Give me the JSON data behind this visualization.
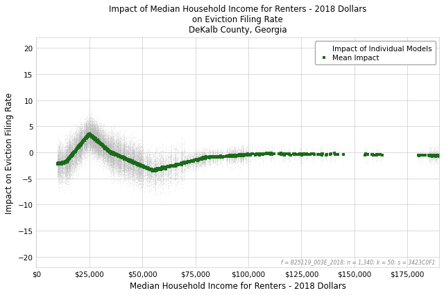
{
  "title_line1": "Impact of Median Household Income for Renters - 2018 Dollars",
  "title_line2": "on Eviction Filing Rate",
  "title_line3": "DeKalb County, Georgia",
  "xlabel": "Median Household Income for Renters - 2018 Dollars",
  "ylabel": "Impact on Eviction Filing Rate",
  "footnote": "f = B25119_003E_2018; n = 1,340; k = 50; s = 3423C0F1",
  "xlim": [
    0,
    190000
  ],
  "ylim": [
    -22,
    22
  ],
  "yticks": [
    -20,
    -15,
    -10,
    -5,
    0,
    5,
    10,
    15,
    20
  ],
  "xticks": [
    0,
    25000,
    50000,
    75000,
    100000,
    125000,
    150000,
    175000
  ],
  "legend_individual": "Impact of Individual Models",
  "legend_mean": "Mean Impact",
  "gray_color": "#bbbbbb",
  "green_color": "#1a6b1a",
  "bg_color": "#ffffff",
  "seed": 42
}
